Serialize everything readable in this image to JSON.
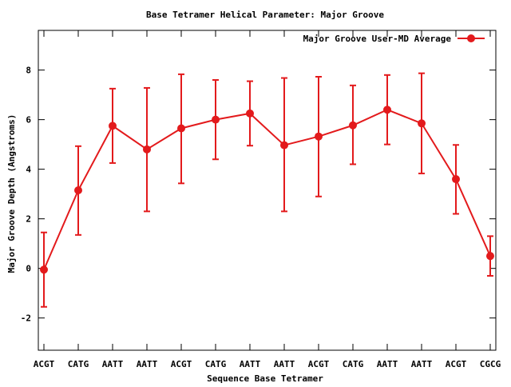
{
  "chart_data": {
    "type": "line",
    "title": "Base Tetramer Helical Parameter: Major Groove",
    "xlabel": "Sequence Base Tetramer",
    "ylabel": "Major Groove Depth (Angstroms)",
    "categories": [
      "ACGT",
      "CATG",
      "AATT",
      "AATT",
      "ACGT",
      "CATG",
      "AATT",
      "AATT",
      "ACGT",
      "CATG",
      "AATT",
      "AATT",
      "ACGT",
      "CGCG"
    ],
    "ylim": [
      -3.3,
      9.6
    ],
    "yticks": [
      -2,
      0,
      2,
      4,
      6,
      8
    ],
    "grid": false,
    "legend_position": "top-right",
    "series": [
      {
        "name": "Major Groove User-MD Average",
        "color": "#e31a1c",
        "marker": "circle",
        "values": [
          -0.05,
          3.15,
          5.75,
          4.8,
          5.65,
          6.0,
          6.25,
          4.97,
          5.32,
          5.77,
          6.4,
          5.85,
          3.6,
          0.5
        ],
        "error_low": [
          -1.55,
          1.35,
          4.25,
          2.3,
          3.43,
          4.4,
          4.95,
          2.3,
          2.9,
          4.2,
          5.0,
          3.83,
          2.2,
          -0.3
        ],
        "error_high": [
          1.45,
          4.93,
          7.25,
          7.28,
          7.83,
          7.6,
          7.55,
          7.68,
          7.73,
          7.38,
          7.8,
          7.87,
          4.98,
          1.3
        ]
      }
    ]
  }
}
